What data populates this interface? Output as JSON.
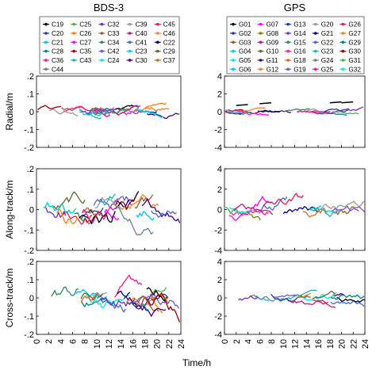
{
  "chart_data": [
    {
      "type": "line",
      "title": "BDS-3",
      "legend": {
        "placement": "top",
        "entries": [
          "C19",
          "C25",
          "C32",
          "C39",
          "C45",
          "C20",
          "C26",
          "C33",
          "C40",
          "C46",
          "C21",
          "C27",
          "C34",
          "C41",
          "C22",
          "C28",
          "C35",
          "C42",
          "C23",
          "C29",
          "C36",
          "C43",
          "C24",
          "C30",
          "C37",
          "C44"
        ],
        "colors": [
          "#000000",
          "#3cb44b",
          "#7b2cbf",
          "#9a9a9a",
          "#e6194b",
          "#1f3ba0",
          "#ff7f0e",
          "#a05a2c",
          "#c71585",
          "#f58231",
          "#00bfff",
          "#ff00ff",
          "#2e8b57",
          "#4169e1",
          "#000080",
          "#008080",
          "#8b0000",
          "#6a5acd",
          "#00ced1",
          "#556b2f",
          "#ff1493",
          "#20b2aa",
          "#00e5ee",
          "#4b0082",
          "#d2691e",
          "#708090"
        ]
      },
      "panels": [
        {
          "ylabel": "Radial/m",
          "ylim": [
            -0.2,
            0.2
          ],
          "yticks": [
            -0.2,
            -0.1,
            0,
            0.1,
            0.2
          ],
          "series": [
            {
              "amp": 0.03
            },
            {
              "amp": 0.04
            },
            {
              "amp": 0.025
            },
            {
              "amp": 0.035
            },
            {
              "amp": 0.03
            },
            {
              "amp": 0.04
            },
            {
              "amp": 0.03
            },
            {
              "amp": 0.035
            }
          ]
        },
        {
          "ylabel": "Along-track/m",
          "ylim": [
            -0.2,
            0.2
          ],
          "yticks": [
            -0.2,
            -0.1,
            0,
            0.1,
            0.2
          ],
          "series": [
            {
              "amp": 0.06
            },
            {
              "amp": 0.08
            },
            {
              "amp": 0.07
            },
            {
              "amp": 0.09
            },
            {
              "amp": 0.06
            },
            {
              "amp": 0.08
            },
            {
              "amp": 0.07
            },
            {
              "amp": 0.1
            }
          ]
        },
        {
          "ylabel": "Cross-track/m",
          "ylim": [
            -0.2,
            0.2
          ],
          "yticks": [
            -0.2,
            -0.1,
            0,
            0.1,
            0.2
          ],
          "series": [
            {
              "amp": 0.06
            },
            {
              "amp": 0.07
            },
            {
              "amp": 0.08
            },
            {
              "amp": 0.06
            },
            {
              "amp": 0.09
            },
            {
              "amp": 0.07
            },
            {
              "amp": 0.08
            },
            {
              "amp": 0.06
            }
          ]
        }
      ]
    },
    {
      "type": "line",
      "title": "GPS",
      "legend": {
        "placement": "top",
        "entries": [
          "G01",
          "G07",
          "G13",
          "G20",
          "G26",
          "G02",
          "G08",
          "G14",
          "G21",
          "G27",
          "G03",
          "G09",
          "G15",
          "G22",
          "G29",
          "G04",
          "G10",
          "G16",
          "G23",
          "G30",
          "G05",
          "G11",
          "G18",
          "G24",
          "G31",
          "G06",
          "G12",
          "G19",
          "G25",
          "G32"
        ],
        "colors": [
          "#000000",
          "#ff00ff",
          "#1f3ba0",
          "#9a9a9a",
          "#e6194b",
          "#1f3ba0",
          "#808000",
          "#7b2cbf",
          "#000080",
          "#ff7f0e",
          "#a05a2c",
          "#c71585",
          "#2e8b57",
          "#4169e1",
          "#008080",
          "#00ced1",
          "#556b2f",
          "#ff1493",
          "#20b2aa",
          "#8b0000",
          "#00e5ee",
          "#4b0082",
          "#d2691e",
          "#708090",
          "#3cb44b",
          "#00bfff",
          "#f58231",
          "#6a5acd",
          "#ff1493",
          "#00e5ee"
        ]
      },
      "panels": [
        {
          "ylabel": "",
          "ylim": [
            -4,
            4
          ],
          "yticks": [
            -4,
            -2,
            0,
            2,
            4
          ],
          "series": [
            {
              "amp": 0.3
            },
            {
              "amp": 0.4
            },
            {
              "amp": 0.3
            },
            {
              "amp": 0.35
            },
            {
              "amp": 0.3
            },
            {
              "amp": 0.4
            }
          ]
        },
        {
          "ylabel": "",
          "ylim": [
            -4,
            4
          ],
          "yticks": [
            -4,
            -2,
            0,
            2,
            4
          ],
          "series": [
            {
              "amp": 0.9
            },
            {
              "amp": 1.1
            },
            {
              "amp": 0.8
            },
            {
              "amp": 1.0
            },
            {
              "amp": 1.2
            },
            {
              "amp": 0.9
            }
          ]
        },
        {
          "ylabel": "",
          "ylim": [
            -4,
            4
          ],
          "yticks": [
            -4,
            -2,
            0,
            2,
            4
          ],
          "series": [
            {
              "amp": 0.6
            },
            {
              "amp": 0.7
            },
            {
              "amp": 0.8
            },
            {
              "amp": 0.5
            },
            {
              "amp": 0.6
            },
            {
              "amp": 0.7
            }
          ]
        }
      ]
    }
  ],
  "xlabel": "Time/h",
  "xticks": [
    0,
    2,
    4,
    6,
    8,
    10,
    12,
    14,
    16,
    18,
    20,
    22,
    24
  ],
  "xlim": [
    0,
    24
  ]
}
